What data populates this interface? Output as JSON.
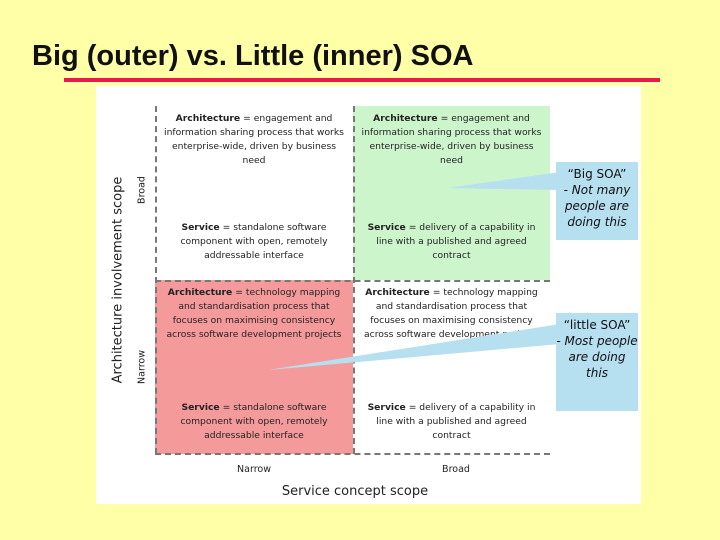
{
  "title": "Big (outer) vs. Little (inner) SOA",
  "diagram": {
    "y_axis_label": "Architecture involvement scope",
    "y_ticks": {
      "top": "Broad",
      "bottom": "Narrow"
    },
    "x_axis_label": "Service concept scope",
    "x_ticks": {
      "left": "Narrow",
      "right": "Broad"
    },
    "cells": {
      "top_left": {
        "architecture_term": "Architecture",
        "architecture_def": "= engagement and information sharing process that works enterprise-wide, driven by business need",
        "service_term": "Service",
        "service_def": "= standalone software component with open, remotely addressable interface"
      },
      "top_right": {
        "architecture_term": "Architecture",
        "architecture_def": "= engagement and information sharing process that works enterprise-wide, driven by business need",
        "service_term": "Service",
        "service_def": "= delivery of a capability in line with a published and agreed contract"
      },
      "bottom_left": {
        "architecture_term": "Architecture",
        "architecture_def": "= technology mapping and standardisation process that focuses on maximising consistency across software development projects",
        "service_term": "Service",
        "service_def": "= standalone software component with open, remotely addressable interface"
      },
      "bottom_right": {
        "architecture_term": "Architecture",
        "architecture_def": "= technology mapping and standardisation process that focuses on maximising consistency across software development projects",
        "service_term": "Service",
        "service_def": "= delivery of a capability in line with a published and agreed contract"
      }
    },
    "callouts": {
      "big": {
        "line1": "“Big SOA”",
        "line2": "- Not many people are doing this"
      },
      "little": {
        "line1": "“little SOA”",
        "line2": "- Most people are doing this"
      }
    }
  },
  "colors": {
    "background": "#ffffa8",
    "title_rule": "#e8194c",
    "green_quadrant": "#ccf5cc",
    "red_quadrant": "#f59a9a",
    "callout": "#b6dff0"
  }
}
